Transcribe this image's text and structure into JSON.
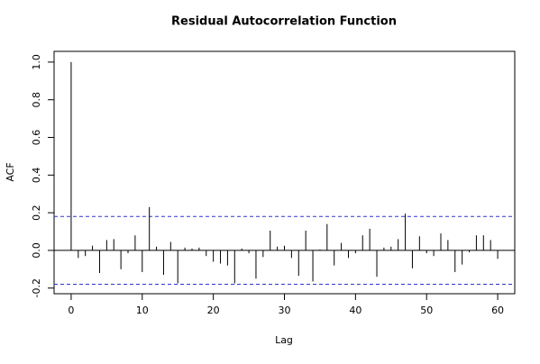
{
  "chart_data": {
    "type": "acf",
    "title": "Residual Autocorrelation Function",
    "x_label": "Lag",
    "y_label": "ACF",
    "x": [
      0,
      1,
      2,
      3,
      4,
      5,
      6,
      7,
      8,
      9,
      10,
      11,
      12,
      13,
      14,
      15,
      16,
      17,
      18,
      19,
      20,
      21,
      22,
      23,
      24,
      25,
      26,
      27,
      28,
      29,
      30,
      31,
      32,
      33,
      34,
      35,
      36,
      37,
      38,
      39,
      40,
      41,
      42,
      43,
      44,
      45,
      46,
      47,
      48,
      49,
      50,
      51,
      52,
      53,
      54,
      55,
      56,
      57,
      58,
      59,
      60
    ],
    "values": [
      1.0,
      -0.04,
      -0.03,
      0.025,
      -0.12,
      0.055,
      0.06,
      -0.1,
      -0.015,
      0.08,
      -0.115,
      0.23,
      0.02,
      -0.13,
      0.045,
      -0.175,
      0.015,
      0.01,
      0.015,
      -0.03,
      -0.06,
      -0.07,
      -0.08,
      -0.175,
      0.01,
      -0.015,
      -0.15,
      -0.035,
      0.105,
      0.02,
      0.025,
      -0.04,
      -0.135,
      0.105,
      -0.165,
      0.005,
      0.14,
      -0.08,
      0.04,
      -0.04,
      -0.015,
      0.08,
      0.115,
      -0.14,
      0.015,
      0.02,
      0.06,
      0.195,
      -0.095,
      0.075,
      -0.015,
      -0.03,
      0.09,
      0.055,
      -0.115,
      -0.075,
      -0.01,
      0.08,
      0.08,
      0.055,
      -0.045
    ],
    "color": "#000000",
    "conf_bounds": [
      0.18,
      -0.18
    ],
    "conf_color": "#3333cc",
    "xlim": [
      -2.4,
      62.4
    ],
    "xticks": [
      0,
      10,
      20,
      30,
      40,
      50,
      60
    ],
    "ylim": [
      -0.23,
      1.057
    ],
    "yticks": [
      {
        "value": -0.2,
        "label": "-0.2"
      },
      {
        "value": 0,
        "label": "0.0"
      },
      0.2,
      0.4,
      0.6,
      0.8,
      {
        "value": 1,
        "label": "1.0"
      }
    ]
  }
}
